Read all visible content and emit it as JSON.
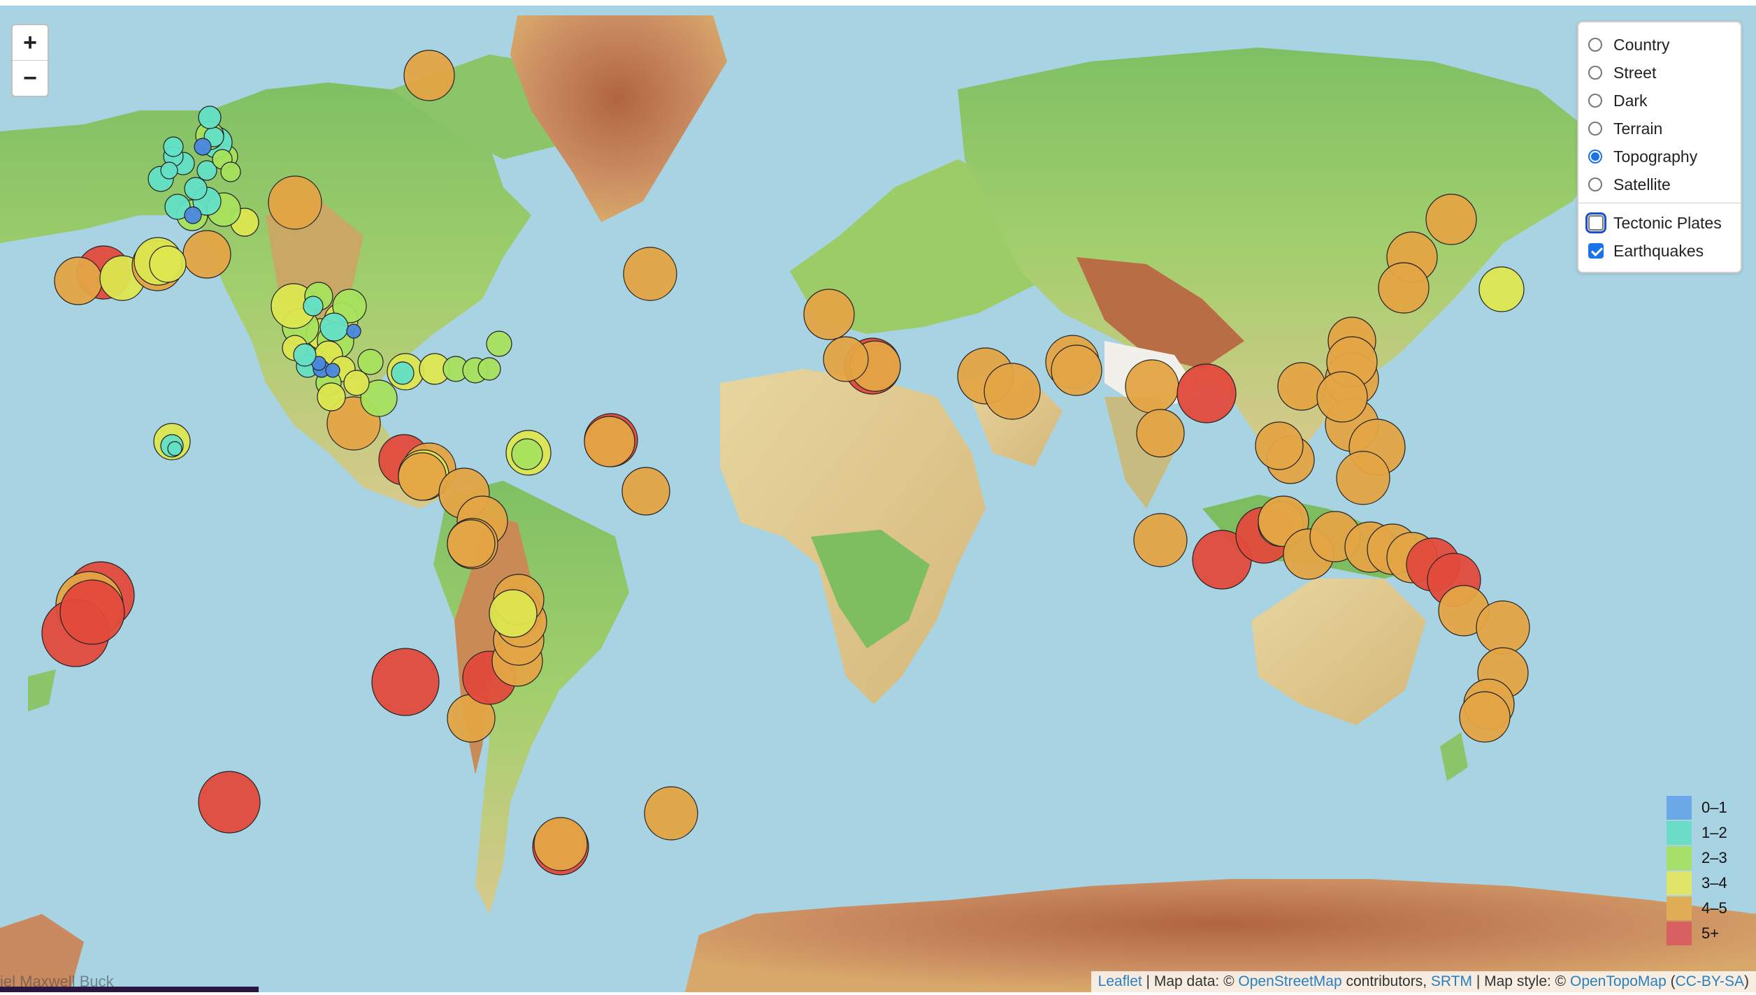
{
  "zoom": {
    "in_label": "+",
    "out_label": "−"
  },
  "layers": {
    "base_options": [
      "Country",
      "Street",
      "Dark",
      "Terrain",
      "Topography",
      "Satellite"
    ],
    "selected_base": "Topography",
    "overlays": [
      {
        "label": "Tectonic Plates",
        "checked": false
      },
      {
        "label": "Earthquakes",
        "checked": true
      }
    ]
  },
  "legend": [
    {
      "label": "0–1",
      "color": "#6aa8e8"
    },
    {
      "label": "1–2",
      "color": "#6ddcc8"
    },
    {
      "label": "2–3",
      "color": "#a4e06a"
    },
    {
      "label": "3–4",
      "color": "#dfe66a"
    },
    {
      "label": "4–5",
      "color": "#e0ac55"
    },
    {
      "label": "5+",
      "color": "#d96060"
    }
  ],
  "attribution": {
    "leaflet": "Leaflet",
    "sep1": " | Map data: © ",
    "osm": "OpenStreetMap",
    "sep2": " contributors, ",
    "srtm": "SRTM",
    "sep3": " | Map style: © ",
    "otm": "OpenTopoMap",
    "open_paren": " (",
    "license": "CC-BY-SA",
    "close_paren": ")"
  },
  "footer_text": "iel Maxwell Buck",
  "colors": {
    "mag_4_5": "#e4a444",
    "mag_5_plus": "#e24a3b",
    "mag_3_4": "#dce64f",
    "mag_2_3": "#a6e15d",
    "mag_1_2": "#63e0c6",
    "mag_0_1": "#4a88e0",
    "ocean": "#a8d3e3"
  }
}
